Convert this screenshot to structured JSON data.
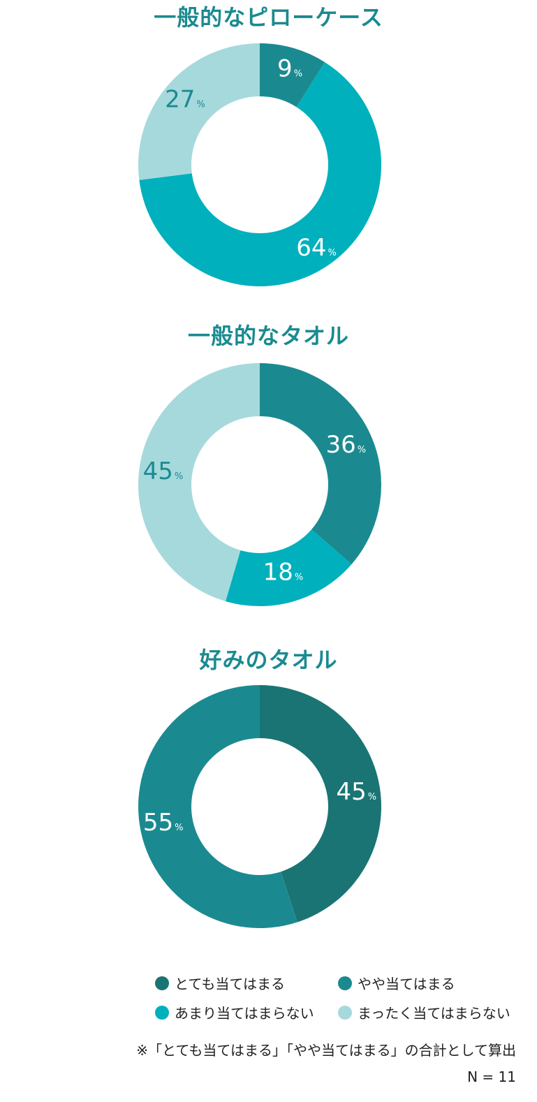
{
  "colors": {
    "totemo": "#1a7474",
    "yaya": "#1b8a90",
    "amari": "#00b0bd",
    "mattaku": "#a6d9dc",
    "title": "#1a8a90"
  },
  "chart_data": [
    {
      "type": "pie",
      "title": "一般的なピローケース",
      "slices": [
        {
          "category": "やや当てはまる",
          "value": 9,
          "color_key": "yaya"
        },
        {
          "category": "あまり当てはまらない",
          "value": 64,
          "color_key": "amari"
        },
        {
          "category": "まったく当てはまらない",
          "value": 27,
          "color_key": "mattaku"
        }
      ]
    },
    {
      "type": "pie",
      "title": "一般的なタオル",
      "slices": [
        {
          "category": "やや当てはまる",
          "value": 36,
          "color_key": "yaya"
        },
        {
          "category": "あまり当てはまらない",
          "value": 18,
          "color_key": "amari"
        },
        {
          "category": "まったく当てはまらない",
          "value": 45,
          "color_key": "mattaku"
        }
      ]
    },
    {
      "type": "pie",
      "title": "好みのタオル",
      "slices": [
        {
          "category": "とても当てはまる",
          "value": 45,
          "color_key": "totemo"
        },
        {
          "category": "やや当てはまる",
          "value": 55,
          "color_key": "yaya"
        }
      ]
    }
  ],
  "percent_unit": "%",
  "legend": [
    {
      "label": "とても当てはまる",
      "color_key": "totemo"
    },
    {
      "label": "やや当てはまる",
      "color_key": "yaya"
    },
    {
      "label": "あまり当てはまらない",
      "color_key": "amari"
    },
    {
      "label": "まったく当てはまらない",
      "color_key": "mattaku"
    }
  ],
  "note": "※「とても当てはまる」「やや当てはまる」の合計として算出",
  "n_value": "N = 11"
}
